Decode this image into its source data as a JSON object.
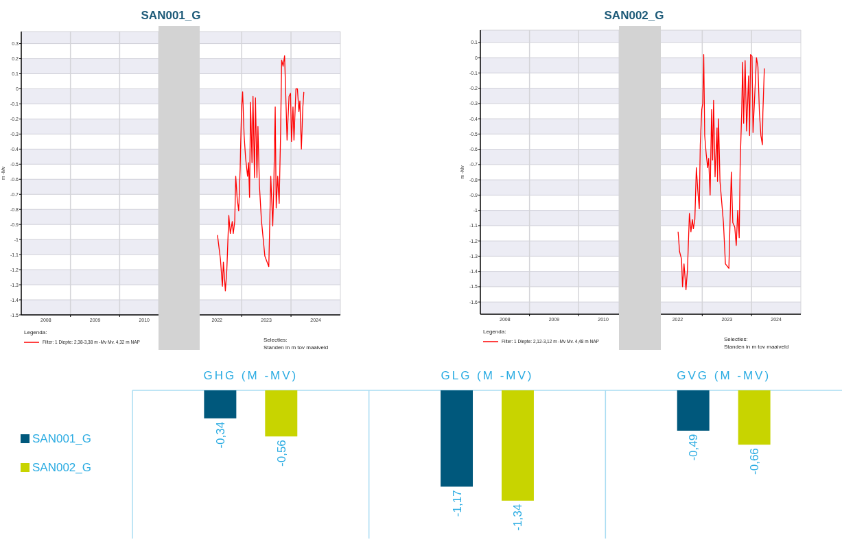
{
  "chart_data": [
    {
      "type": "line",
      "title": "SAN001_G",
      "ylabel": "m -Mv",
      "grid": true,
      "xlim": [
        2008,
        2010.79
      ],
      "xticks": [
        {
          "value": 2008.5,
          "label": "2008"
        },
        {
          "value": 2009,
          "label": null
        },
        {
          "value": 2009.5,
          "label": "2009"
        },
        {
          "value": 2010,
          "label": null
        },
        {
          "value": 2010.5,
          "label": "2010"
        }
      ],
      "ylim": [
        -1.5,
        0.38
      ],
      "yticks": [
        -1.5,
        -1.4,
        -1.3,
        -1.2,
        -1.1,
        -1,
        -0.9,
        -0.8,
        -0.7,
        -0.6,
        -0.5,
        -0.4,
        -0.3,
        -0.2,
        -0.1,
        0,
        0.1,
        0.2,
        0.3
      ]
    },
    {
      "type": "line",
      "legend_title": "Legenda:",
      "legend": "bottom left",
      "grid": true,
      "tick_labels": "x",
      "annotations": [
        "Selecties:",
        "Standen in m tov maaiveld"
      ],
      "xlim": [
        2022.15,
        2025
      ],
      "xticks": [
        {
          "value": 2022.5,
          "label": "2022"
        },
        {
          "value": 2023,
          "label": null
        },
        {
          "value": 2023.5,
          "label": "2023"
        },
        {
          "value": 2024,
          "label": null
        },
        {
          "value": 2024.5,
          "label": "2024"
        }
      ],
      "ylim": [
        -1.5,
        0.38
      ],
      "yticks": [
        -1.5,
        -1.4,
        -1.3,
        -1.2,
        -1.1,
        -1,
        -0.9,
        -0.8,
        -0.7,
        -0.6,
        -0.5,
        -0.4,
        -0.3,
        -0.2,
        -0.1,
        0,
        0.1,
        0.2,
        0.3
      ],
      "series": [
        {
          "name": "Filter: 1 Diepte: 2,38-3,38 m -Mv Mv. 4,32 m NAP",
          "color": "#ff0000",
          "x": [
            2022.51,
            2022.54,
            2022.57,
            2022.61,
            2022.63,
            2022.67,
            2022.7,
            2022.74,
            2022.77,
            2022.81,
            2022.83,
            2022.86,
            2022.88,
            2022.91,
            2022.94,
            2022.97,
            2022.98,
            2023.0,
            2023.02,
            2023.05,
            2023.08,
            2023.12,
            2023.14,
            2023.16,
            2023.18,
            2023.21,
            2023.23,
            2023.26,
            2023.28,
            2023.31,
            2023.33,
            2023.36,
            2023.4,
            2023.47,
            2023.55,
            2023.59,
            2023.63,
            2023.65,
            2023.68,
            2023.7,
            2023.73,
            2023.76,
            2023.79,
            2023.81,
            2023.84,
            2023.87,
            2023.89,
            2023.92,
            2023.96,
            2023.99,
            2024.01,
            2024.04,
            2024.06,
            2024.1,
            2024.13,
            2024.16,
            2024.18,
            2024.21,
            2024.24,
            2024.26
          ],
          "values": [
            -0.97,
            -1.05,
            -1.13,
            -1.31,
            -1.15,
            -1.34,
            -1.2,
            -0.84,
            -0.96,
            -0.88,
            -0.96,
            -0.88,
            -0.58,
            -0.73,
            -0.81,
            -0.53,
            -0.37,
            -0.12,
            -0.02,
            -0.31,
            -0.46,
            -0.58,
            -0.49,
            -0.72,
            -0.09,
            -0.49,
            -0.05,
            -0.59,
            -0.06,
            -0.59,
            -0.25,
            -0.64,
            -0.87,
            -1.11,
            -1.18,
            -0.58,
            -0.91,
            -0.67,
            -0.12,
            -0.79,
            -0.58,
            -0.76,
            -0.28,
            0.19,
            0.15,
            0.22,
            0.0,
            -0.34,
            -0.05,
            -0.03,
            -0.35,
            -0.12,
            -0.34,
            0.0,
            0.0,
            -0.15,
            -0.08,
            -0.4,
            -0.12,
            -0.02
          ]
        }
      ]
    },
    {
      "type": "line",
      "title": "SAN002_G",
      "ylabel": "m -Mv",
      "grid": true,
      "xlim": [
        2008,
        2010.82
      ],
      "xticks": [
        {
          "value": 2008.5,
          "label": "2008"
        },
        {
          "value": 2009,
          "label": null
        },
        {
          "value": 2009.5,
          "label": "2009"
        },
        {
          "value": 2010,
          "label": null
        },
        {
          "value": 2010.5,
          "label": "2010"
        }
      ],
      "ylim": [
        -1.68,
        0.18
      ],
      "yticks": [
        -1.6,
        -1.5,
        -1.4,
        -1.3,
        -1.2,
        -1.1,
        -1,
        -0.9,
        -0.8,
        -0.7,
        -0.6,
        -0.5,
        -0.4,
        -0.3,
        -0.2,
        -0.1,
        0,
        0.1
      ]
    },
    {
      "type": "line",
      "legend_title": "Legenda:",
      "legend": "bottom left",
      "grid": true,
      "tick_labels": "x",
      "annotations": [
        "Selecties:",
        "Standen in m tov maaiveld"
      ],
      "xlim": [
        2022.16,
        2025
      ],
      "xticks": [
        {
          "value": 2022.5,
          "label": "2022"
        },
        {
          "value": 2023,
          "label": null
        },
        {
          "value": 2023.5,
          "label": "2023"
        },
        {
          "value": 2024,
          "label": null
        },
        {
          "value": 2024.5,
          "label": "2024"
        }
      ],
      "ylim": [
        -1.68,
        0.18
      ],
      "yticks": [
        -1.6,
        -1.5,
        -1.4,
        -1.3,
        -1.2,
        -1.1,
        -1,
        -0.9,
        -0.8,
        -0.7,
        -0.6,
        -0.5,
        -0.4,
        -0.3,
        -0.2,
        -0.1,
        0,
        0.1
      ],
      "series": [
        {
          "name": "Filter: 1 Diepte: 2,12-3,12 m -Mv Mv. 4,48 m NAP",
          "color": "#ff0000",
          "x": [
            2022.51,
            2022.54,
            2022.58,
            2022.6,
            2022.63,
            2022.67,
            2022.7,
            2022.74,
            2022.77,
            2022.8,
            2022.82,
            2022.85,
            2022.88,
            2022.91,
            2022.94,
            2022.96,
            2022.99,
            2023.01,
            2023.03,
            2023.05,
            2023.08,
            2023.11,
            2023.13,
            2023.16,
            2023.19,
            2023.21,
            2023.23,
            2023.26,
            2023.3,
            2023.31,
            2023.33,
            2023.36,
            2023.43,
            2023.47,
            2023.54,
            2023.59,
            2023.62,
            2023.66,
            2023.69,
            2023.72,
            2023.75,
            2023.77,
            2023.8,
            2023.82,
            2023.84,
            2023.87,
            2023.9,
            2023.94,
            2023.96,
            2023.98,
            2024.01,
            2024.03,
            2024.07,
            2024.1,
            2024.13,
            2024.16,
            2024.19,
            2024.22,
            2024.23,
            2024.26
          ],
          "values": [
            -1.14,
            -1.27,
            -1.32,
            -1.5,
            -1.35,
            -1.52,
            -1.39,
            -1.02,
            -1.14,
            -1.06,
            -1.12,
            -1.06,
            -0.72,
            -0.87,
            -0.99,
            -0.57,
            -0.34,
            -0.3,
            0.02,
            -0.51,
            -0.63,
            -0.72,
            -0.66,
            -0.9,
            -0.34,
            -0.67,
            -0.28,
            -0.78,
            -0.46,
            -0.81,
            -0.4,
            -0.81,
            -1.08,
            -1.35,
            -1.38,
            -0.75,
            -1.08,
            -1.11,
            -1.23,
            -1.0,
            -1.18,
            -0.69,
            -0.36,
            -0.03,
            -0.43,
            -0.02,
            -0.48,
            -0.12,
            -0.51,
            0.02,
            0.01,
            -0.49,
            -0.21,
            0.0,
            -0.06,
            -0.36,
            -0.51,
            -0.57,
            -0.36,
            -0.07
          ]
        }
      ]
    },
    {
      "type": "bar",
      "categories": [
        "GHG (M -MV)",
        "GLG (M -MV)",
        "GVG (M -MV)"
      ],
      "legend": "left",
      "ylim": [
        -1.8,
        0
      ],
      "series": [
        {
          "name": "SAN001_G",
          "color": "#00587c",
          "values": [
            -0.34,
            -1.17,
            -0.49
          ],
          "value_labels": [
            "-0,34",
            "-1,17",
            "-0,49"
          ]
        },
        {
          "name": "SAN002_G",
          "color": "#c8d400",
          "values": [
            -0.56,
            -1.34,
            -0.66
          ],
          "value_labels": [
            "-0,56",
            "-1,34",
            "-0,66"
          ]
        }
      ]
    }
  ]
}
